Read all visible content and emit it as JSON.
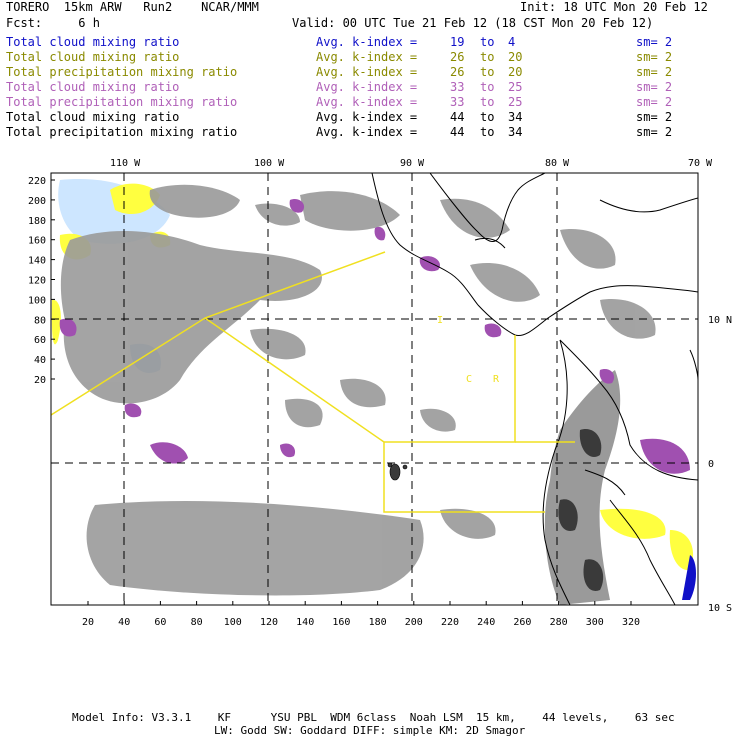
{
  "header": {
    "model": "TORERO  15km ARW   Run2    NCAR/MMM",
    "init": "Init: 18 UTC Mon 20 Feb 12",
    "fcst": "Fcst:     6 h",
    "valid": "Valid: 00 UTC Tue 21 Feb 12 (18 CST Mon 20 Feb 12)"
  },
  "legend": [
    {
      "name": "Total cloud mixing ratio",
      "kindex": "Avg. k-index =",
      "from": "19",
      "to": "to",
      "to_val": "4",
      "sm": "sm= 2",
      "color": "#1010c8"
    },
    {
      "name": "Total cloud mixing ratio",
      "kindex": "Avg. k-index =",
      "from": "26",
      "to": "to",
      "to_val": "20",
      "sm": "sm= 2",
      "color": "#8a8a00"
    },
    {
      "name": "Total precipitation mixing ratio",
      "kindex": "Avg. k-index =",
      "from": "26",
      "to": "to",
      "to_val": "20",
      "sm": "sm= 2",
      "color": "#8a8a00"
    },
    {
      "name": "Total cloud mixing ratio",
      "kindex": "Avg. k-index =",
      "from": "33",
      "to": "to",
      "to_val": "25",
      "sm": "sm= 2",
      "color": "#b060b8"
    },
    {
      "name": "Total precipitation mixing ratio",
      "kindex": "Avg. k-index =",
      "from": "33",
      "to": "to",
      "to_val": "25",
      "sm": "sm= 2",
      "color": "#b060b8"
    },
    {
      "name": "Total cloud mixing ratio",
      "kindex": "Avg. k-index =",
      "from": "44",
      "to": "to",
      "to_val": "34",
      "sm": "sm= 2",
      "color": "#000000"
    },
    {
      "name": "Total precipitation mixing ratio",
      "kindex": "Avg. k-index =",
      "from": "44",
      "to": "to",
      "to_val": "34",
      "sm": "sm= 2",
      "color": "#000000"
    }
  ],
  "map": {
    "lon_labels": [
      "110 W",
      "100 W",
      "90 W",
      "80 W",
      "70 W"
    ],
    "lat_labels": [
      "10 N",
      "0",
      "10 S"
    ],
    "grid_y_labels": [
      "220",
      "200",
      "180",
      "160",
      "140",
      "120",
      "100",
      "80",
      "60",
      "40",
      "20"
    ],
    "grid_x_labels": [
      "20",
      "40",
      "60",
      "80",
      "100",
      "120",
      "140",
      "160",
      "180",
      "200",
      "220",
      "240",
      "260",
      "280",
      "300",
      "320"
    ],
    "region_labels": [
      "I",
      "C",
      "R"
    ],
    "colors": {
      "cloud_gray": "#9a9a9a",
      "precip_dark": "#3a3a3a",
      "purple": "#a050b0",
      "yellow": "#ffff40",
      "light_blue": "#cde6ff",
      "mid_blue": "#9cc8f0",
      "boundary_yellow": "#f0e020"
    }
  },
  "footer": {
    "line1": "Model Info: V3.3.1    KF      YSU PBL  WDM 6class  Noah LSM  15 km,    44 levels,    63 sec",
    "line2": "LW: Godd SW: Goddard DIFF: simple KM: 2D Smagor"
  }
}
